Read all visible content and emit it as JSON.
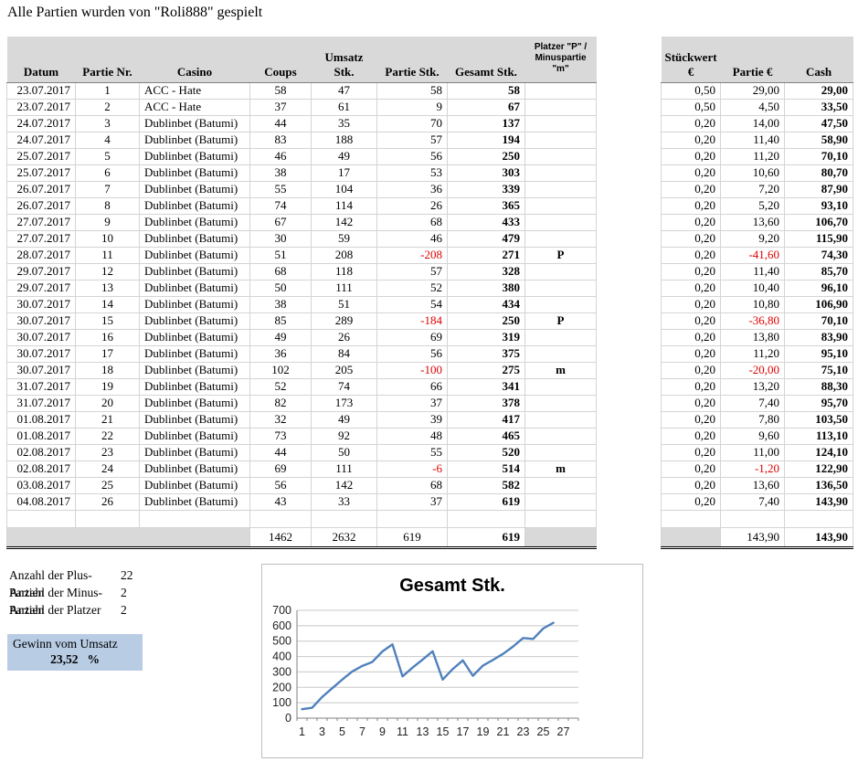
{
  "page_title": "Alle Partien wurden von \"Roli888\" gespielt",
  "colors": {
    "header_bg": "#D9D9D9",
    "negative": "#DD0000",
    "highlight_bg": "#B8CCE4",
    "chart_line": "#4F81BD"
  },
  "main_table": {
    "headers": [
      "Datum",
      "Partie Nr.",
      "Casino",
      "Coups",
      "Umsatz Stk.",
      "Partie Stk.",
      "Gesamt Stk."
    ],
    "platzer_header": [
      "Platzer \"P\" /",
      "Minuspartie",
      "\"m\""
    ],
    "rows": [
      [
        "23.07.2017",
        "1",
        "ACC - Hate",
        "58",
        "47",
        "58",
        "58",
        ""
      ],
      [
        "23.07.2017",
        "2",
        "ACC - Hate",
        "37",
        "61",
        "9",
        "67",
        ""
      ],
      [
        "24.07.2017",
        "3",
        "Dublinbet (Batumi)",
        "44",
        "35",
        "70",
        "137",
        ""
      ],
      [
        "24.07.2017",
        "4",
        "Dublinbet (Batumi)",
        "83",
        "188",
        "57",
        "194",
        ""
      ],
      [
        "25.07.2017",
        "5",
        "Dublinbet (Batumi)",
        "46",
        "49",
        "56",
        "250",
        ""
      ],
      [
        "25.07.2017",
        "6",
        "Dublinbet (Batumi)",
        "38",
        "17",
        "53",
        "303",
        ""
      ],
      [
        "26.07.2017",
        "7",
        "Dublinbet (Batumi)",
        "55",
        "104",
        "36",
        "339",
        ""
      ],
      [
        "26.07.2017",
        "8",
        "Dublinbet (Batumi)",
        "74",
        "114",
        "26",
        "365",
        ""
      ],
      [
        "27.07.2017",
        "9",
        "Dublinbet (Batumi)",
        "67",
        "142",
        "68",
        "433",
        ""
      ],
      [
        "27.07.2017",
        "10",
        "Dublinbet (Batumi)",
        "30",
        "59",
        "46",
        "479",
        ""
      ],
      [
        "28.07.2017",
        "11",
        "Dublinbet (Batumi)",
        "51",
        "208",
        "-208",
        "271",
        "P"
      ],
      [
        "29.07.2017",
        "12",
        "Dublinbet (Batumi)",
        "68",
        "118",
        "57",
        "328",
        ""
      ],
      [
        "29.07.2017",
        "13",
        "Dublinbet (Batumi)",
        "50",
        "111",
        "52",
        "380",
        ""
      ],
      [
        "30.07.2017",
        "14",
        "Dublinbet (Batumi)",
        "38",
        "51",
        "54",
        "434",
        ""
      ],
      [
        "30.07.2017",
        "15",
        "Dublinbet (Batumi)",
        "85",
        "289",
        "-184",
        "250",
        "P"
      ],
      [
        "30.07.2017",
        "16",
        "Dublinbet (Batumi)",
        "49",
        "26",
        "69",
        "319",
        ""
      ],
      [
        "30.07.2017",
        "17",
        "Dublinbet (Batumi)",
        "36",
        "84",
        "56",
        "375",
        ""
      ],
      [
        "30.07.2017",
        "18",
        "Dublinbet (Batumi)",
        "102",
        "205",
        "-100",
        "275",
        "m"
      ],
      [
        "31.07.2017",
        "19",
        "Dublinbet (Batumi)",
        "52",
        "74",
        "66",
        "341",
        ""
      ],
      [
        "31.07.2017",
        "20",
        "Dublinbet (Batumi)",
        "82",
        "173",
        "37",
        "378",
        ""
      ],
      [
        "01.08.2017",
        "21",
        "Dublinbet (Batumi)",
        "32",
        "49",
        "39",
        "417",
        ""
      ],
      [
        "01.08.2017",
        "22",
        "Dublinbet (Batumi)",
        "73",
        "92",
        "48",
        "465",
        ""
      ],
      [
        "02.08.2017",
        "23",
        "Dublinbet (Batumi)",
        "44",
        "50",
        "55",
        "520",
        ""
      ],
      [
        "02.08.2017",
        "24",
        "Dublinbet (Batumi)",
        "69",
        "111",
        "-6",
        "514",
        "m"
      ],
      [
        "03.08.2017",
        "25",
        "Dublinbet (Batumi)",
        "56",
        "142",
        "68",
        "582",
        ""
      ],
      [
        "04.08.2017",
        "26",
        "Dublinbet (Batumi)",
        "43",
        "33",
        "37",
        "619",
        ""
      ]
    ],
    "totals": {
      "coups": "1462",
      "umsatz_stk": "2632",
      "partie_stk": "619",
      "gesamt_stk": "619"
    }
  },
  "right_table": {
    "header_stueckwert": [
      "Stückwert",
      "€"
    ],
    "headers": [
      "Partie €",
      "Cash"
    ],
    "rows": [
      [
        "0,50",
        "29,00",
        "29,00"
      ],
      [
        "0,50",
        "4,50",
        "33,50"
      ],
      [
        "0,20",
        "14,00",
        "47,50"
      ],
      [
        "0,20",
        "11,40",
        "58,90"
      ],
      [
        "0,20",
        "11,20",
        "70,10"
      ],
      [
        "0,20",
        "10,60",
        "80,70"
      ],
      [
        "0,20",
        "7,20",
        "87,90"
      ],
      [
        "0,20",
        "5,20",
        "93,10"
      ],
      [
        "0,20",
        "13,60",
        "106,70"
      ],
      [
        "0,20",
        "9,20",
        "115,90"
      ],
      [
        "0,20",
        "-41,60",
        "74,30"
      ],
      [
        "0,20",
        "11,40",
        "85,70"
      ],
      [
        "0,20",
        "10,40",
        "96,10"
      ],
      [
        "0,20",
        "10,80",
        "106,90"
      ],
      [
        "0,20",
        "-36,80",
        "70,10"
      ],
      [
        "0,20",
        "13,80",
        "83,90"
      ],
      [
        "0,20",
        "11,20",
        "95,10"
      ],
      [
        "0,20",
        "-20,00",
        "75,10"
      ],
      [
        "0,20",
        "13,20",
        "88,30"
      ],
      [
        "0,20",
        "7,40",
        "95,70"
      ],
      [
        "0,20",
        "7,80",
        "103,50"
      ],
      [
        "0,20",
        "9,60",
        "113,10"
      ],
      [
        "0,20",
        "11,00",
        "124,10"
      ],
      [
        "0,20",
        "-1,20",
        "122,90"
      ],
      [
        "0,20",
        "13,60",
        "136,50"
      ],
      [
        "0,20",
        "7,40",
        "143,90"
      ]
    ],
    "totals": {
      "partie_eur": "143,90",
      "cash": "143,90"
    }
  },
  "summary": {
    "items": [
      {
        "label": "Anzahl der Plus-Partien",
        "value": "22"
      },
      {
        "label": "Anzahl der Minus-Partien",
        "value": "2"
      },
      {
        "label": "Anzahl der Platzer",
        "value": "2"
      }
    ]
  },
  "gewinn_box": {
    "label": "Gewinn vom Umsatz",
    "value": "23,52",
    "unit": "%"
  },
  "chart_data": {
    "type": "line",
    "title": "Gesamt Stk.",
    "x": [
      1,
      2,
      3,
      4,
      5,
      6,
      7,
      8,
      9,
      10,
      11,
      12,
      13,
      14,
      15,
      16,
      17,
      18,
      19,
      20,
      21,
      22,
      23,
      24,
      25,
      26
    ],
    "values": [
      58,
      67,
      137,
      194,
      250,
      303,
      339,
      365,
      433,
      479,
      271,
      328,
      380,
      434,
      250,
      319,
      375,
      275,
      341,
      378,
      417,
      465,
      520,
      514,
      582,
      619
    ],
    "x_ticks": [
      1,
      3,
      5,
      7,
      9,
      11,
      13,
      15,
      17,
      19,
      21,
      23,
      25,
      27
    ],
    "axis_categories": 28,
    "ylim": [
      0,
      700
    ],
    "y_tick_step": 100,
    "grid": true,
    "legend": "none",
    "line_color": "#4F81BD"
  }
}
